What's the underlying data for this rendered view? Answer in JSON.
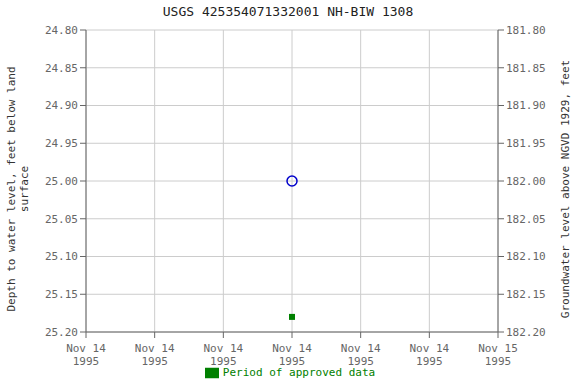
{
  "chart_data": {
    "type": "scatter",
    "title": "USGS 425354071332001 NH-BIW 1308",
    "y_label": "Depth to water level, feet below land\nsurface",
    "y2_label": "Groundwater level above NGVD 1929, feet",
    "categories": [
      "Nov 14\n1995",
      "Nov 14\n1995",
      "Nov 14\n1995",
      "Nov 14\n1995",
      "Nov 14\n1995",
      "Nov 14\n1995",
      "Nov 15\n1995"
    ],
    "series": [
      {
        "color": "#0000cc",
        "marker": "circle_open",
        "values": [
          null,
          null,
          null,
          25.0,
          null,
          null,
          null
        ]
      },
      {
        "name": "Period of approved data",
        "color": "#008000",
        "marker": "square",
        "values": [
          null,
          null,
          null,
          25.18,
          null,
          null,
          null
        ]
      }
    ],
    "ylim": [
      25.2,
      24.8
    ],
    "yticks": [
      {
        "value": 24.8,
        "label": "24.80"
      },
      24.85,
      {
        "value": 24.9,
        "label": "24.90"
      },
      24.95,
      {
        "value": 25.0,
        "label": "25.00"
      },
      25.05,
      {
        "value": 25.1,
        "label": "25.10"
      },
      25.15,
      {
        "value": 25.2,
        "label": "25.20"
      }
    ],
    "y2lim": [
      182.2,
      181.8
    ],
    "y2ticks": [
      {
        "value": 181.8,
        "label": "181.80"
      },
      181.85,
      {
        "value": 181.9,
        "label": "181.90"
      },
      181.95,
      {
        "value": 182.0,
        "label": "182.00"
      },
      182.05,
      {
        "value": 182.1,
        "label": "182.10"
      },
      182.15,
      {
        "value": 182.2,
        "label": "182.20"
      }
    ],
    "grid": true,
    "legend": "bottom"
  }
}
